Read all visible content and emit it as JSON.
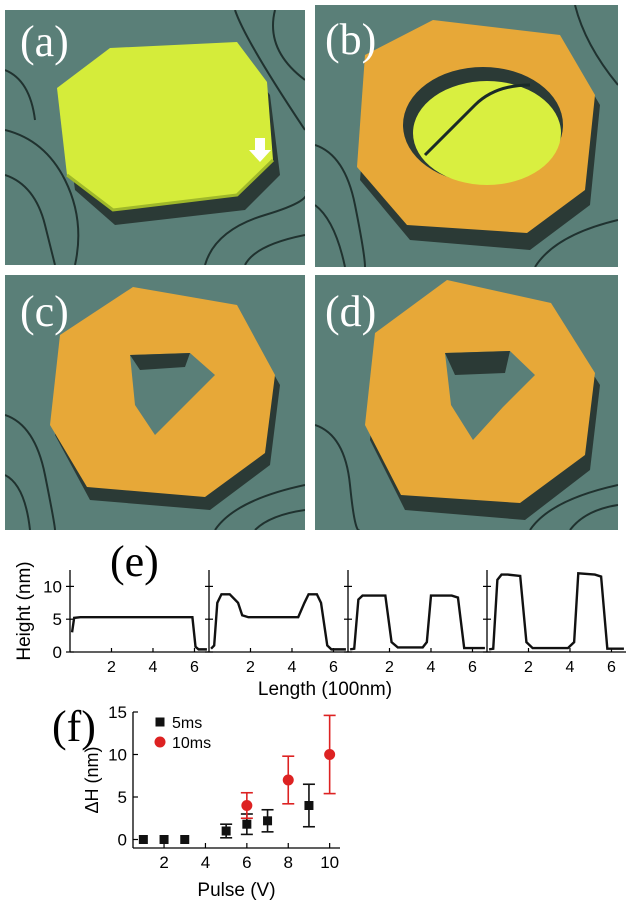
{
  "panels": {
    "a": "(a)",
    "b": "(b)",
    "c": "(c)",
    "d": "(d)",
    "e": "(e)",
    "f": "(f)"
  },
  "colors": {
    "surface": "#5a7f78",
    "surface_light": "#7fa39c",
    "step_line": "#1a2a28",
    "film_green": "#d5ec3a",
    "film_orange": "#e7a838",
    "film_side": "#2b3a36",
    "hole_green": "#d9ef40",
    "red": "#dd2222",
    "black": "#111111"
  },
  "chart_data": [
    {
      "type": "line",
      "panel": "(e)",
      "ylabel": "Height (nm)",
      "xlabel": "Length (100nm)",
      "ylim": [
        0,
        12.5
      ],
      "yticks": [
        0,
        5,
        10
      ],
      "xticks": [
        2,
        4,
        6
      ],
      "xlim": [
        0,
        6.7
      ],
      "subplots": [
        {
          "x": [
            0.1,
            0.2,
            0.5,
            1.0,
            3.0,
            5.0,
            5.9,
            6.05,
            6.2,
            6.6
          ],
          "y": [
            3.0,
            5.2,
            5.3,
            5.3,
            5.3,
            5.3,
            5.3,
            0.8,
            0.4,
            0.4
          ]
        },
        {
          "x": [
            0.1,
            0.25,
            0.4,
            0.6,
            1.0,
            1.4,
            1.6,
            1.9,
            3.0,
            4.3,
            4.6,
            4.8,
            5.2,
            5.4,
            5.7,
            5.9,
            6.6
          ],
          "y": [
            0.5,
            1.0,
            7.5,
            8.8,
            8.8,
            7.5,
            5.6,
            5.3,
            5.3,
            5.3,
            7.5,
            8.8,
            8.8,
            7.5,
            1.0,
            0.4,
            0.4
          ]
        },
        {
          "x": [
            0.1,
            0.3,
            0.5,
            0.7,
            1.0,
            1.8,
            2.1,
            2.4,
            3.6,
            3.8,
            4.0,
            5.0,
            5.3,
            5.6,
            6.6
          ],
          "y": [
            0.4,
            0.5,
            8.0,
            8.6,
            8.6,
            8.6,
            1.5,
            0.7,
            0.7,
            1.5,
            8.6,
            8.6,
            8.3,
            0.6,
            0.6
          ]
        },
        {
          "x": [
            0.1,
            0.3,
            0.5,
            0.7,
            1.0,
            1.6,
            1.9,
            2.2,
            3.9,
            4.2,
            4.4,
            5.2,
            5.5,
            5.8,
            6.6
          ],
          "y": [
            0.4,
            0.5,
            11.0,
            11.8,
            11.8,
            11.6,
            1.5,
            0.6,
            0.6,
            1.5,
            12.0,
            11.8,
            11.5,
            0.5,
            0.5
          ]
        }
      ]
    },
    {
      "type": "scatter",
      "panel": "(f)",
      "xlabel": "Pulse (V)",
      "ylabel": "ΔH (nm)",
      "xlim": [
        0.5,
        10.5
      ],
      "ylim": [
        -1,
        15
      ],
      "xticks": [
        2,
        4,
        6,
        8,
        10
      ],
      "yticks": [
        0,
        5,
        10,
        15
      ],
      "series": [
        {
          "name": "5ms",
          "color": "#111111",
          "marker": "square",
          "x": [
            1,
            2,
            3,
            5,
            6,
            7,
            9
          ],
          "y": [
            0,
            0,
            0,
            1.0,
            1.8,
            2.2,
            4.0
          ],
          "err": [
            0,
            0,
            0,
            0.8,
            1.2,
            1.3,
            2.5
          ]
        },
        {
          "name": "10ms",
          "color": "#dd2222",
          "marker": "circle",
          "x": [
            6,
            8,
            10
          ],
          "y": [
            4.0,
            7.0,
            10.0
          ],
          "err": [
            1.5,
            2.8,
            4.6
          ]
        }
      ]
    }
  ]
}
